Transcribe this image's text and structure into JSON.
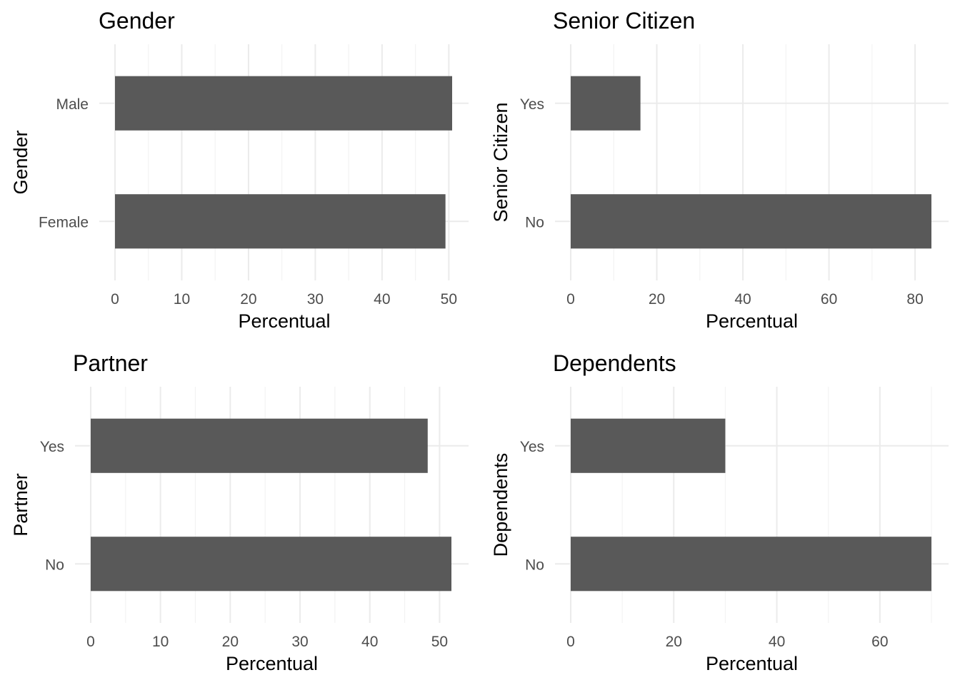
{
  "chart_data": [
    {
      "type": "bar",
      "orientation": "horizontal",
      "title": "Gender",
      "xlabel": "Percentual",
      "ylabel": "Gender",
      "categories": [
        "Female",
        "Male"
      ],
      "values": [
        49.5,
        50.5
      ],
      "xticks": [
        0,
        10,
        20,
        30,
        40,
        50
      ],
      "xlim": [
        0,
        50.5
      ],
      "grid": true
    },
    {
      "type": "bar",
      "orientation": "horizontal",
      "title": "Senior Citizen",
      "xlabel": "Percentual",
      "ylabel": "Senior Citizen",
      "categories": [
        "No",
        "Yes"
      ],
      "values": [
        83.8,
        16.2
      ],
      "xticks": [
        0,
        20,
        40,
        60,
        80
      ],
      "xlim": [
        0,
        83.8
      ],
      "grid": true
    },
    {
      "type": "bar",
      "orientation": "horizontal",
      "title": "Partner",
      "xlabel": "Percentual",
      "ylabel": "Partner",
      "categories": [
        "No",
        "Yes"
      ],
      "values": [
        51.7,
        48.3
      ],
      "xticks": [
        0,
        10,
        20,
        30,
        40,
        50
      ],
      "xlim": [
        0,
        51.7
      ],
      "grid": true
    },
    {
      "type": "bar",
      "orientation": "horizontal",
      "title": "Dependents",
      "xlabel": "Percentual",
      "ylabel": "Dependents",
      "categories": [
        "No",
        "Yes"
      ],
      "values": [
        70.0,
        30.0
      ],
      "xticks": [
        0,
        20,
        40,
        60
      ],
      "xlim": [
        0,
        70.0
      ],
      "grid": true
    }
  ]
}
